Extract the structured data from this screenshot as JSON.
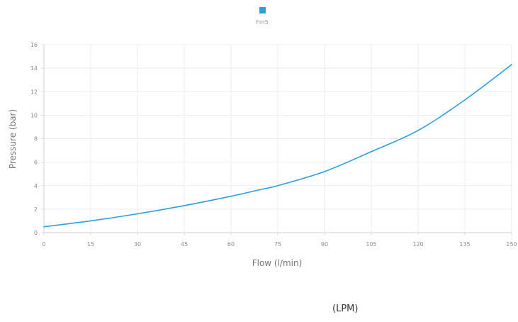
{
  "chart_data": {
    "type": "line",
    "title": "",
    "xlabel": "Flow (l/min)",
    "ylabel": "Pressure (bar)",
    "x_ticks": [
      "0",
      "15",
      "30",
      "45",
      "60",
      "75",
      "90",
      "105",
      "120",
      "135",
      "150"
    ],
    "y_ticks": [
      "0",
      "2",
      "4",
      "6",
      "8",
      "10",
      "12",
      "14",
      "16"
    ],
    "xlim": [
      0,
      150
    ],
    "ylim": [
      0,
      16
    ],
    "grid": true,
    "legend_position": "top-center",
    "series": [
      {
        "name": "Fm5",
        "color": "#2b9fdc",
        "x": [
          0,
          15,
          30,
          45,
          60,
          70,
          75,
          90,
          105,
          120,
          135,
          150
        ],
        "y": [
          0.5,
          1.0,
          1.6,
          2.3,
          3.1,
          3.7,
          4.0,
          5.2,
          6.9,
          8.7,
          11.3,
          14.3
        ]
      }
    ]
  },
  "footer_note": "(LPM)"
}
